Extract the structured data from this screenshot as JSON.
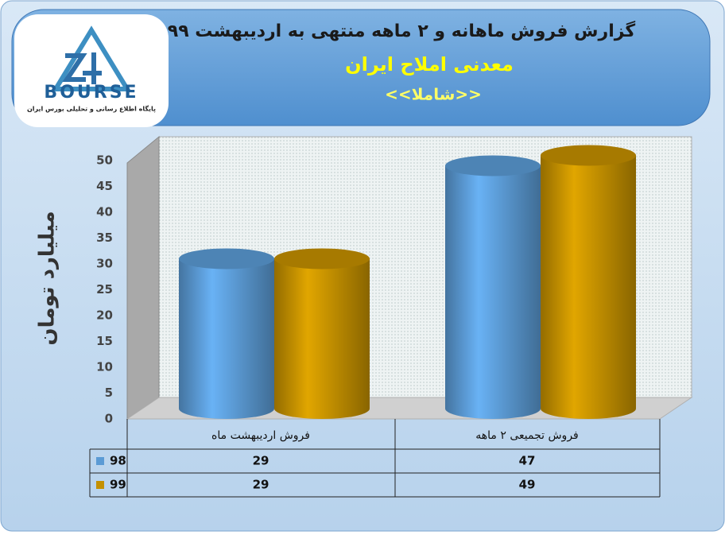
{
  "logo": {
    "brand": "BOURSE",
    "tagline": "پایگاه اطلاع رسانی و تحلیلی بورس ایران"
  },
  "chart_data": {
    "type": "bar",
    "title": "گزارش فروش ماهانه و ۲ ماهه منتهی به اردیبهشت ۹۹",
    "subtitle": "معدنی املاح ایران",
    "annotation": "<<شاملا>>",
    "y_label": "میلیارد تومان",
    "categories": [
      "فروش اردیبهشت  ماه",
      "فروش تجمیعی ۲ ماهه"
    ],
    "series": [
      {
        "name": "98",
        "color": "#5b9bd5",
        "values": [
          29,
          47
        ]
      },
      {
        "name": "99",
        "color": "#c49000",
        "values": [
          29,
          49
        ]
      }
    ],
    "ylim": [
      0,
      50
    ],
    "yticks": [
      0,
      5,
      10,
      15,
      20,
      25,
      30,
      35,
      40,
      45,
      50
    ]
  }
}
